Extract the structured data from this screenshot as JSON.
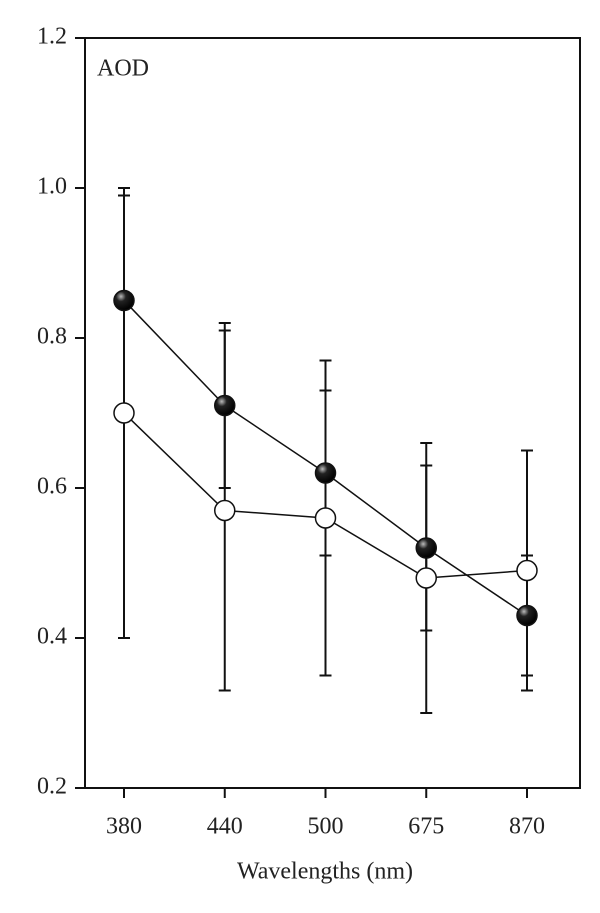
{
  "chart_data": {
    "type": "line",
    "annotation": "AOD",
    "x_label": "Wavelengths (nm)",
    "categories": [
      "380",
      "440",
      "500",
      "675",
      "870"
    ],
    "series": [
      {
        "color": "#000000",
        "values": [
          0.85,
          0.71,
          0.62,
          0.52,
          0.43
        ],
        "errors": [
          0.14,
          0.11,
          0.11,
          0.11,
          0.08
        ]
      },
      {
        "color": "#ffffff",
        "values": [
          0.7,
          0.57,
          0.56,
          0.48,
          0.49
        ],
        "errors": [
          0.3,
          0.24,
          0.21,
          0.18,
          0.16
        ]
      }
    ],
    "ylim": [
      0.2,
      1.2
    ],
    "yticks": [
      0.2,
      0.4,
      0.6,
      0.8,
      {
        "value": 1,
        "label": "1.0"
      },
      1.2
    ]
  }
}
